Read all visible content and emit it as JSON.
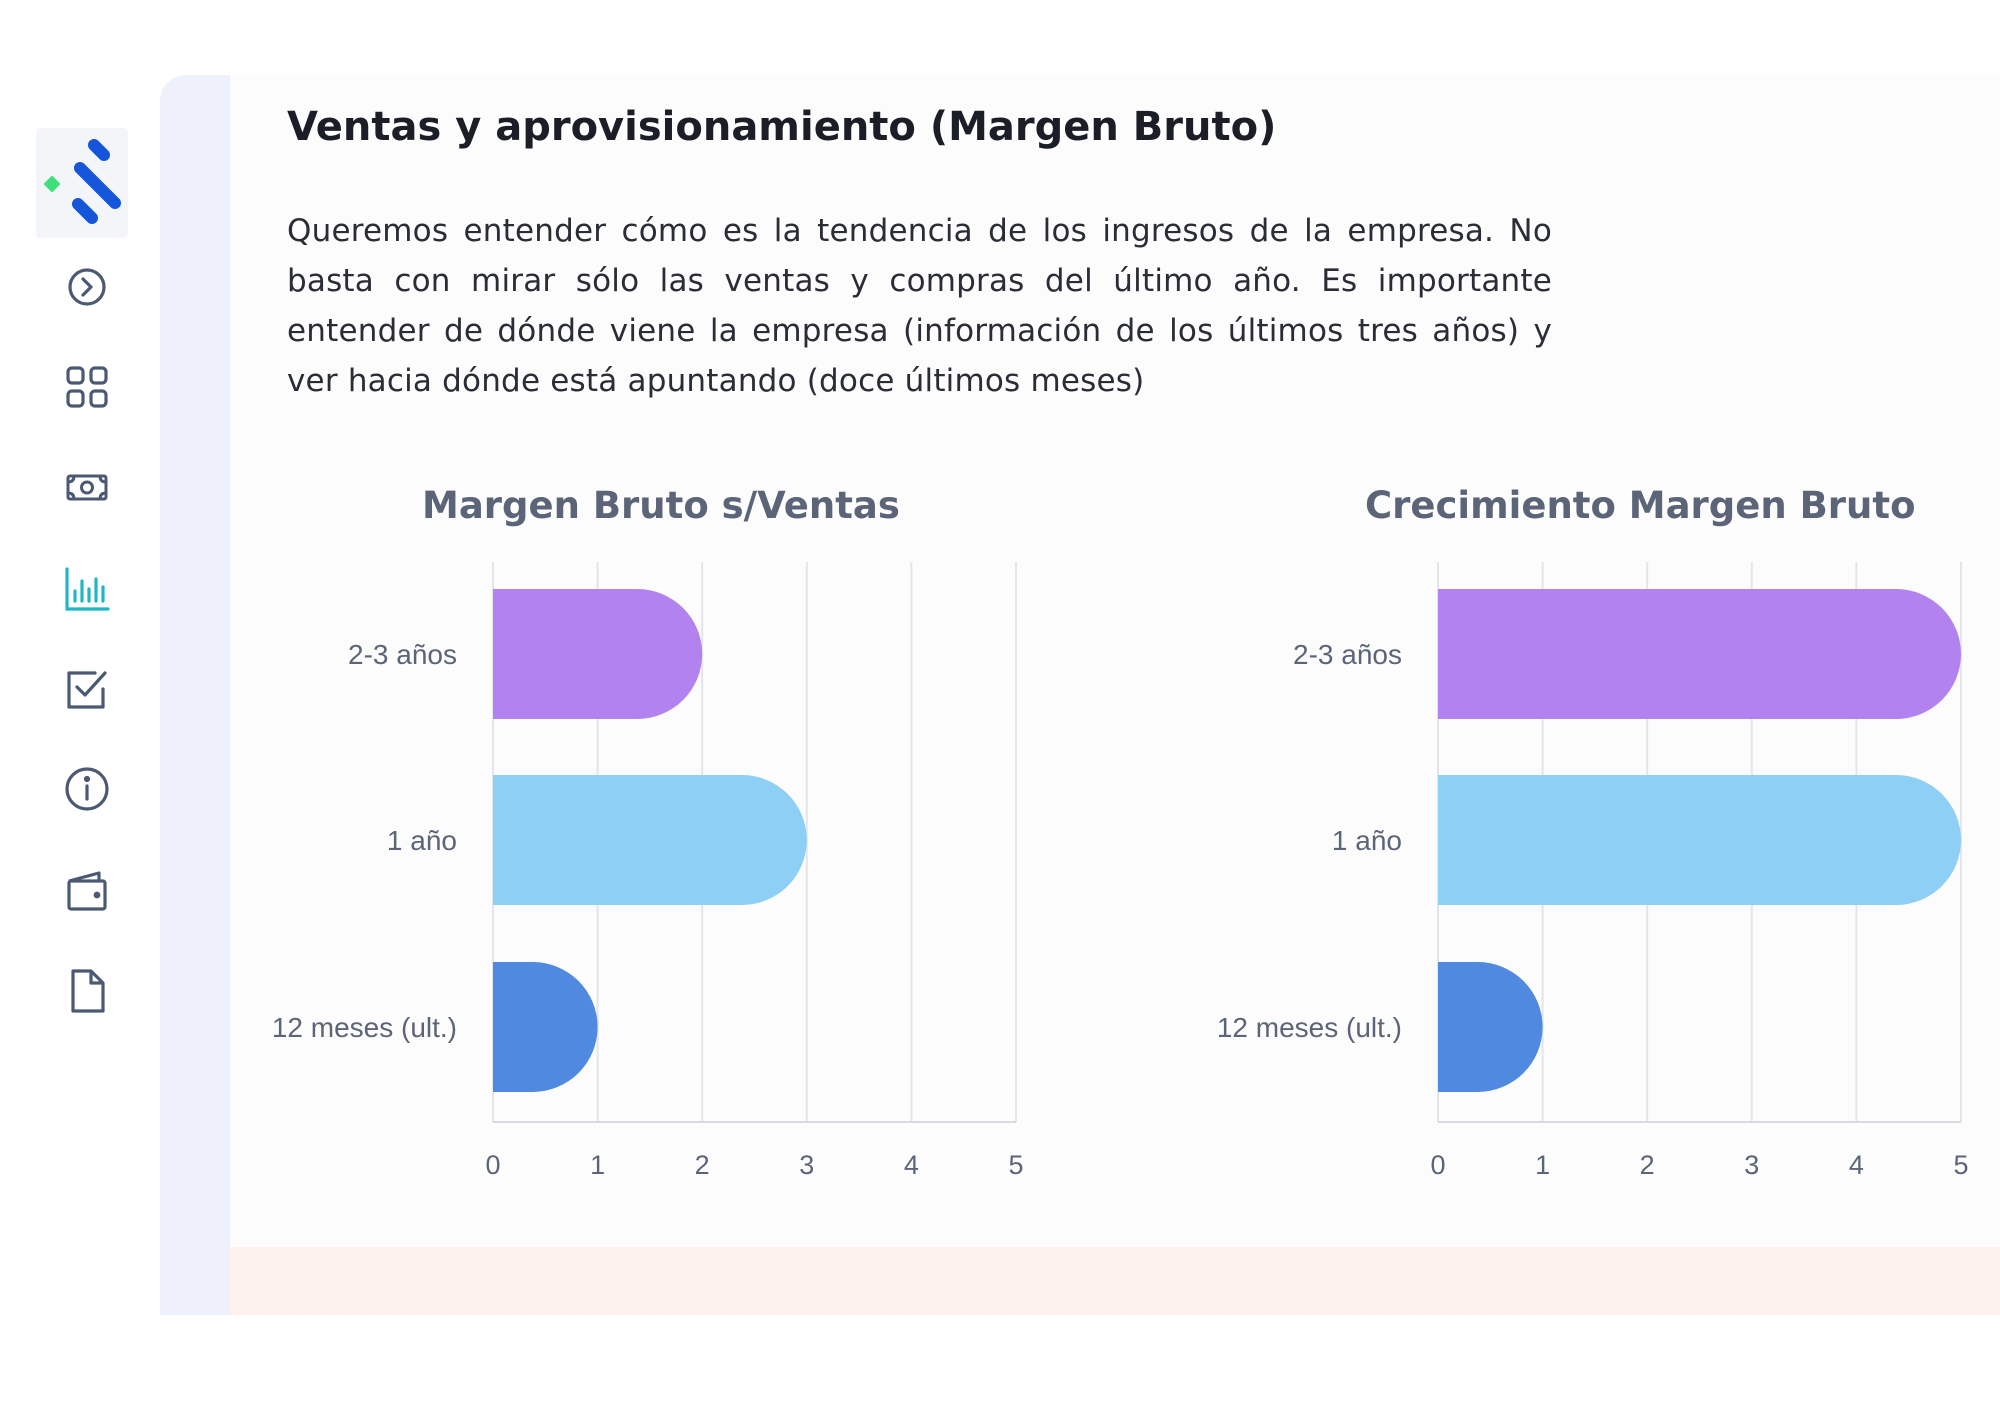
{
  "sidebar": {
    "logo": "app-logo",
    "items": [
      {
        "icon": "chevron-right-circle-icon",
        "active": false
      },
      {
        "icon": "grid-icon",
        "active": false
      },
      {
        "icon": "cash-icon",
        "active": false
      },
      {
        "icon": "bar-chart-icon",
        "active": true
      },
      {
        "icon": "checkbox-icon",
        "active": false
      },
      {
        "icon": "info-icon",
        "active": false
      },
      {
        "icon": "wallet-icon",
        "active": false
      },
      {
        "icon": "document-icon",
        "active": false
      }
    ],
    "icon_color": "#4b5a72",
    "active_color": "#1fb6c5"
  },
  "page": {
    "title": "Ventas y aprovisionamiento (Margen Bruto)",
    "description": "Queremos entender cómo es la tendencia de los ingresos de la empresa. No basta con mirar sólo las ventas y compras del último año. Es importante entender de dónde viene la empresa (información de los últimos tres años) y ver hacia dónde está apuntando (doce últimos meses)"
  },
  "chart_data": [
    {
      "type": "bar",
      "orientation": "horizontal",
      "title": "Margen Bruto s/Ventas",
      "categories": [
        "2-3 años",
        "1 año",
        "12 meses (ult.)"
      ],
      "values": [
        2,
        3,
        1
      ],
      "colors": [
        "#b282ef",
        "#8dcff5",
        "#4f89e0"
      ],
      "xlim": [
        0,
        5
      ],
      "xticks": [
        "0",
        "1",
        "2",
        "3",
        "4",
        "5"
      ],
      "grid": true
    },
    {
      "type": "bar",
      "orientation": "horizontal",
      "title": "Crecimiento Margen Bruto",
      "categories": [
        "2-3 años",
        "1 año",
        "12 meses (ult.)"
      ],
      "values": [
        5,
        5,
        1
      ],
      "colors": [
        "#b282ef",
        "#8dcff5",
        "#4f89e0"
      ],
      "xlim": [
        0,
        5
      ],
      "xticks": [
        "0",
        "1",
        "2",
        "3",
        "4",
        "5"
      ],
      "grid": true
    }
  ]
}
